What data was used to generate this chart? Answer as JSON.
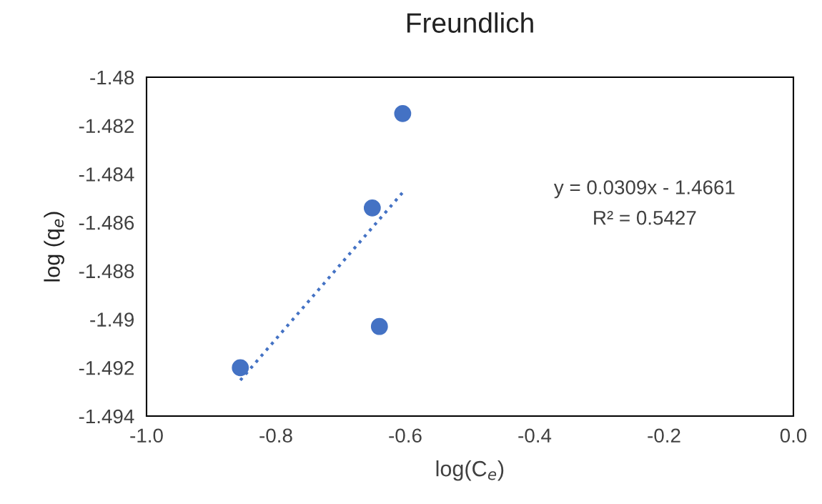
{
  "chart_data": {
    "type": "scatter",
    "title": "Freundlich",
    "xlabel": "log(C$_{e}$)",
    "ylabel": "log (q$_{e}$)",
    "x": [
      -0.604,
      -0.651,
      -0.64,
      -0.855
    ],
    "series": [
      {
        "color": "#4472c4",
        "marker": "circle",
        "values": [
          -1.4815,
          -1.4854,
          -1.4903,
          -1.492
        ]
      },
      {
        "type": "line",
        "color": "#4472c4",
        "line_style": "dotted",
        "marker": "none",
        "x": [
          -0.855,
          -0.604
        ],
        "values": [
          -1.49252,
          -1.48476
        ]
      }
    ],
    "annotations": [
      "y = 0.0309x - 1.4661",
      "R² = 0.5427"
    ],
    "xlim": [
      -1.0,
      0.0
    ],
    "xticks": [
      {
        "value": -1.0,
        "label": "-1.0"
      },
      {
        "value": -0.8,
        "label": "-0.8"
      },
      {
        "value": -0.6,
        "label": "-0.6"
      },
      {
        "value": -0.4,
        "label": "-0.4"
      },
      {
        "value": -0.2,
        "label": "-0.2"
      },
      {
        "value": 0.0,
        "label": "0.0"
      }
    ],
    "ylim": [
      -1.494,
      -1.48
    ],
    "yticks": [
      -1.494,
      -1.492,
      -1.49,
      -1.488,
      -1.486,
      -1.484,
      -1.482,
      -1.48
    ],
    "grid": false,
    "legend": false
  }
}
